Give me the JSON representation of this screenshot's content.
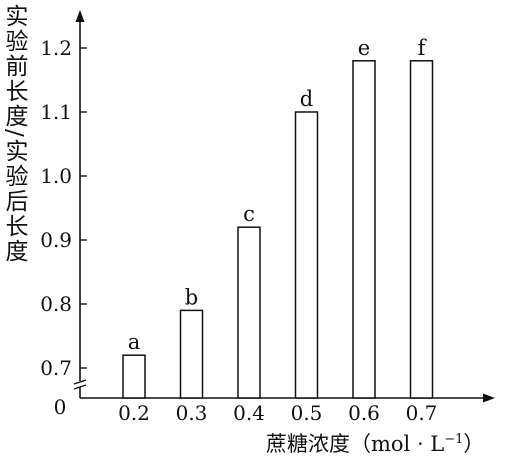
{
  "chart_data": {
    "type": "bar",
    "categories": [
      "0.2",
      "0.3",
      "0.4",
      "0.5",
      "0.6",
      "0.7"
    ],
    "values": [
      0.72,
      0.79,
      0.92,
      1.1,
      1.18,
      1.18
    ],
    "bar_labels": [
      "a",
      "b",
      "c",
      "d",
      "e",
      "f"
    ],
    "yticks": [
      "0.7",
      "0.8",
      "0.9",
      "1.0",
      "1.1",
      "1.2"
    ],
    "ylim": [
      0.65,
      1.25
    ],
    "origin_label": "0",
    "ylabel": "实验前长度/实验后长度",
    "xlabel": "蔗糖浓度",
    "xunit": "（mol · L",
    "xunit_exp": "−1",
    "xunit_close": "）",
    "axis_break": true,
    "grid": false
  }
}
